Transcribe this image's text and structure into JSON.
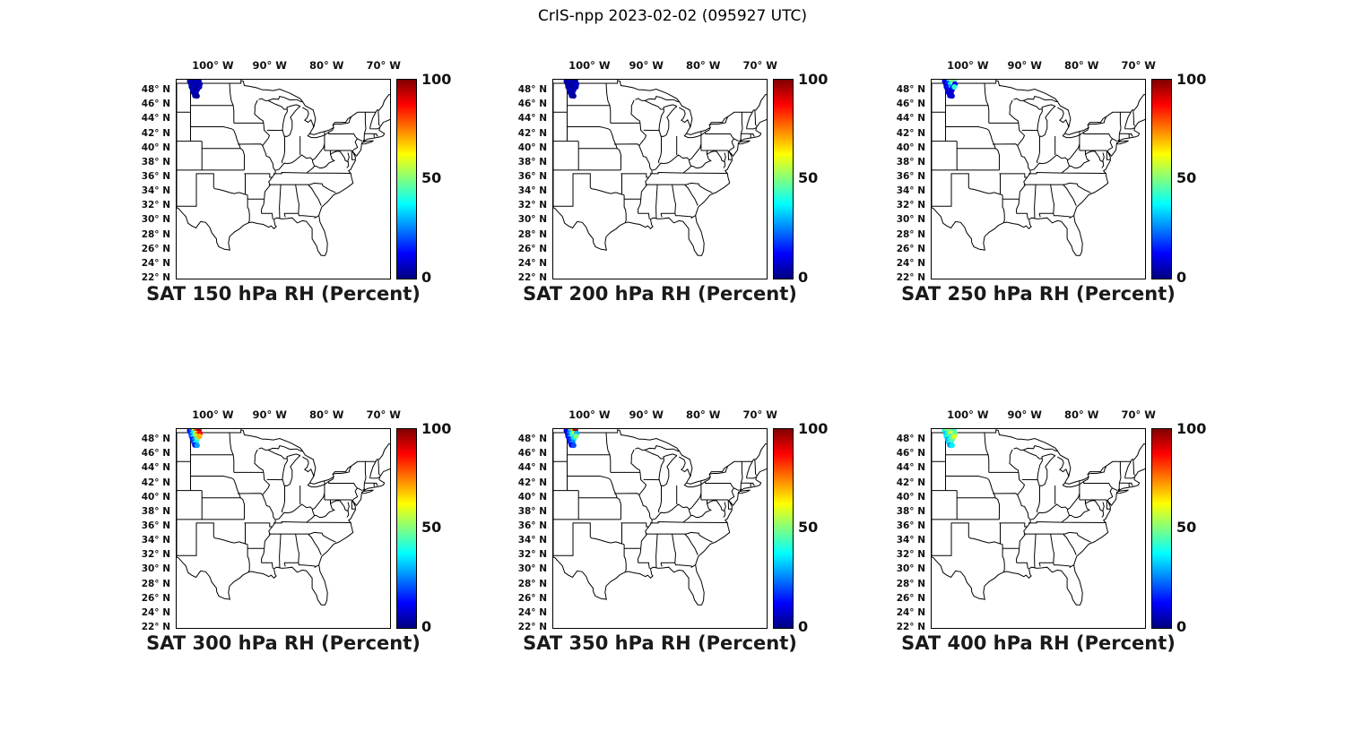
{
  "title": "CrIS-npp 2023-02-02 (095927 UTC)",
  "axes": {
    "lon_ticks": [
      "100° W",
      "90° W",
      "80° W",
      "70° W"
    ],
    "lon_values": [
      -100,
      -90,
      -80,
      -70
    ],
    "lat_ticks": [
      "48° N",
      "46° N",
      "44° N",
      "42° N",
      "40° N",
      "38° N",
      "36° N",
      "34° N",
      "32° N",
      "30° N",
      "28° N",
      "26° N",
      "24° N",
      "22° N"
    ],
    "lat_values": [
      48,
      46,
      44,
      42,
      40,
      38,
      36,
      34,
      32,
      30,
      28,
      26,
      24,
      22
    ]
  },
  "colors": {
    "map_stroke": "#000000",
    "colorbar_gradient": [
      "#000080",
      "#0000FF",
      "#00FFFF",
      "#FFFF00",
      "#FF0000",
      "#800000"
    ]
  },
  "chart_data": {
    "type": "scatter",
    "description": "Six map panels of CrIS-npp satellite relative humidity retrievals over the central/eastern USA at different pressure levels; colored dots clustered near 48N 103W, jet colormap 0-100 percent.",
    "map_extent": {
      "lon": [
        -106.5,
        -69.0
      ],
      "lat": [
        22.0,
        49.5
      ]
    },
    "colormap": "jet",
    "colorbar_range": [
      0,
      100
    ],
    "colorbar_ticks": [
      100,
      50,
      0
    ],
    "colorbar_tick_labels": [
      "100",
      "50",
      "0"
    ],
    "points_lonlat": [
      [
        -104.2,
        49.3
      ],
      [
        -103.8,
        49.35
      ],
      [
        -103.4,
        49.3
      ],
      [
        -103.0,
        49.35
      ],
      [
        -102.6,
        49.3
      ],
      [
        -104.0,
        48.9
      ],
      [
        -103.6,
        48.95
      ],
      [
        -103.2,
        48.9
      ],
      [
        -102.8,
        48.85
      ],
      [
        -102.4,
        48.9
      ],
      [
        -103.9,
        48.5
      ],
      [
        -103.5,
        48.45
      ],
      [
        -103.1,
        48.5
      ],
      [
        -102.7,
        48.45
      ],
      [
        -103.7,
        48.1
      ],
      [
        -103.3,
        48.05
      ],
      [
        -102.9,
        48.1
      ],
      [
        -103.5,
        47.7
      ],
      [
        -103.1,
        47.65
      ],
      [
        -103.3,
        47.3
      ],
      [
        -102.9,
        47.25
      ],
      [
        -102.5,
        48.5
      ]
    ],
    "panels": [
      {
        "title": "SAT 150 hPa RH (Percent)",
        "level_hPa": 150,
        "values": [
          3,
          5,
          2,
          6,
          4,
          7,
          3,
          5,
          4,
          6,
          2,
          8,
          5,
          3,
          6,
          4,
          2,
          5,
          7,
          4,
          3,
          6
        ]
      },
      {
        "title": "SAT 200 hPa RH (Percent)",
        "level_hPa": 200,
        "values": [
          5,
          3,
          6,
          4,
          2,
          4,
          6,
          3,
          5,
          7,
          3,
          5,
          2,
          6,
          4,
          7,
          5,
          3,
          4,
          6,
          2,
          5
        ]
      },
      {
        "title": "SAT 250 hPa RH (Percent)",
        "level_hPa": 250,
        "values": [
          10,
          12,
          40,
          55,
          48,
          8,
          15,
          35,
          50,
          12,
          9,
          14,
          30,
          10,
          8,
          12,
          9,
          11,
          7,
          9,
          8,
          42
        ]
      },
      {
        "title": "SAT 300 hPa RH (Percent)",
        "level_hPa": 300,
        "values": [
          12,
          25,
          60,
          80,
          95,
          18,
          35,
          55,
          75,
          88,
          22,
          40,
          52,
          65,
          15,
          30,
          48,
          20,
          38,
          14,
          28,
          70
        ]
      },
      {
        "title": "SAT 350 hPa RH (Percent)",
        "level_hPa": 350,
        "values": [
          8,
          15,
          45,
          70,
          97,
          10,
          25,
          40,
          60,
          30,
          14,
          28,
          45,
          35,
          12,
          22,
          35,
          16,
          26,
          10,
          20,
          50
        ]
      },
      {
        "title": "SAT 400 hPa RH (Percent)",
        "level_hPa": 400,
        "values": [
          38,
          48,
          58,
          52,
          44,
          32,
          42,
          55,
          62,
          46,
          36,
          46,
          42,
          50,
          30,
          40,
          48,
          34,
          44,
          28,
          36,
          58
        ]
      }
    ]
  }
}
